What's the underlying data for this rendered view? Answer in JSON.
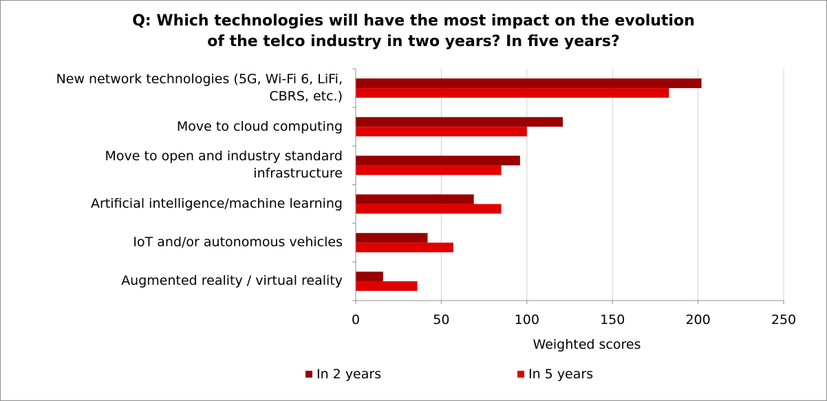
{
  "chart_data": {
    "type": "bar",
    "orientation": "horizontal",
    "title": "Q: Which technologies will have the most impact on the evolution of the telco industry in two years? In five years?",
    "title_lines": [
      "Q: Which technologies will have the most impact on the evolution",
      "of the telco industry in two years? In five years?"
    ],
    "categories": [
      "New network technologies (5G, Wi-Fi 6, LiFi, CBRS, etc.)",
      "Move to cloud computing",
      "Move to open and industry standard infrastructure",
      "Artificial intelligence/machine learning",
      "IoT and/or autonomous vehicles",
      "Augmented reality / virtual reality"
    ],
    "category_lines": [
      [
        "New network technologies (5G, Wi-Fi 6, LiFi,",
        "CBRS, etc.)"
      ],
      [
        "Move to cloud computing"
      ],
      [
        "Move to open and industry standard",
        "infrastructure"
      ],
      [
        "Artificial intelligence/machine learning"
      ],
      [
        "IoT and/or autonomous vehicles"
      ],
      [
        "Augmented reality / virtual reality"
      ]
    ],
    "series": [
      {
        "name": "In 2 years",
        "color": "#990000",
        "values": [
          202,
          121,
          96,
          69,
          42,
          16
        ]
      },
      {
        "name": "In 5 years",
        "color": "#e00000",
        "values": [
          183,
          100,
          85,
          85,
          57,
          36
        ]
      }
    ],
    "xlabel": "Weighted scores",
    "ylabel": "",
    "xlim": [
      0,
      250
    ],
    "x_ticks": [
      0,
      50,
      100,
      150,
      200,
      250
    ],
    "grid": true,
    "legend_position": "bottom"
  }
}
